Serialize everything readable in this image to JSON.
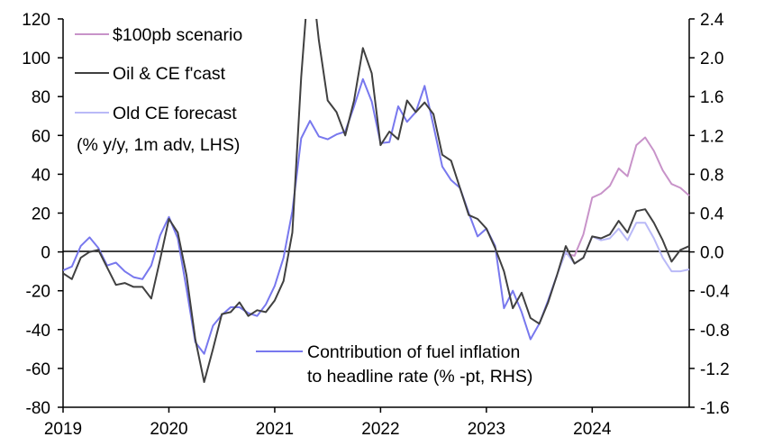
{
  "chart_data": {
    "type": "line",
    "title": "",
    "x_start": "2019-01",
    "frequency": "monthly",
    "xticks": [
      "2019",
      "2020",
      "2021",
      "2022",
      "2023",
      "2024"
    ],
    "y_left": {
      "label": "% y/y, 1m adv, LHS",
      "ylim": [
        -80,
        120
      ],
      "ticks": [
        "120",
        "100",
        "80",
        "60",
        "40",
        "20",
        "0",
        "-20",
        "-40",
        "-60",
        "-80"
      ]
    },
    "y_right": {
      "label": "% -pt, RHS",
      "ylim": [
        -1.6,
        2.4
      ],
      "ticks": [
        "2.4",
        "2.0",
        "1.6",
        "1.2",
        "0.8",
        "0.4",
        "0.0",
        "-0.4",
        "-0.8",
        "-1.2",
        "-1.6"
      ]
    },
    "legend": {
      "pink": "$100pb scenario",
      "black": "Oil & CE f'cast",
      "light": "Old CE forecast",
      "note": "(% y/y, 1m adv, LHS)",
      "blue_line1": "Contribution of fuel inflation",
      "blue_line2": "to headline rate (% -pt, RHS)"
    },
    "series": [
      {
        "name": "Oil & CE f'cast",
        "axis": "left",
        "start": "2019-01",
        "color": "#404040",
        "values": [
          -11,
          -14,
          -3,
          0,
          1,
          -8,
          -17,
          -16,
          -18,
          -18,
          -24,
          -4,
          17,
          10,
          -12,
          -45,
          -67,
          -50,
          -32,
          -31,
          -26,
          -33,
          -30,
          -31,
          -25,
          -15,
          10,
          90,
          150,
          109,
          78,
          72,
          60,
          78,
          105,
          92,
          55,
          62,
          58,
          78,
          72,
          77,
          71,
          50,
          47,
          33,
          19,
          17,
          12,
          2,
          -10,
          -29,
          -21,
          -34,
          -37,
          -26,
          -12,
          3,
          -6,
          -3,
          8,
          7,
          9,
          16,
          10,
          21,
          22,
          15,
          6,
          -5,
          1,
          3
        ]
      },
      {
        "name": "Contribution of fuel inflation to headline rate",
        "axis": "right",
        "start": "2019-01",
        "color": "#7878ee",
        "values": [
          -0.19,
          -0.15,
          0.06,
          0.15,
          0.04,
          -0.14,
          -0.11,
          -0.2,
          -0.26,
          -0.28,
          -0.14,
          0.17,
          0.36,
          0.14,
          -0.38,
          -0.93,
          -1.05,
          -0.76,
          -0.65,
          -0.57,
          -0.57,
          -0.63,
          -0.66,
          -0.54,
          -0.35,
          -0.06,
          0.42,
          1.17,
          1.35,
          1.19,
          1.16,
          1.21,
          1.24,
          1.5,
          1.78,
          1.55,
          1.12,
          1.13,
          1.5,
          1.34,
          1.44,
          1.71,
          1.3,
          0.88,
          0.74,
          0.66,
          0.4,
          0.16,
          0.24,
          0.06,
          -0.58,
          -0.4,
          -0.62,
          -0.9,
          -0.74,
          -0.5,
          -0.24
        ]
      },
      {
        "name": "Old CE forecast",
        "axis": "left",
        "start": "2023-09",
        "color": "#b9b9f7",
        "values": [
          -12,
          0,
          -6,
          -3,
          8,
          6,
          7,
          12,
          6,
          15,
          15,
          7,
          -3,
          -10,
          -10,
          -9
        ]
      },
      {
        "name": "$100pb scenario",
        "axis": "left",
        "start": "2023-10",
        "color": "#c893c9",
        "values": [
          -1,
          -2,
          9,
          28,
          30,
          34,
          43,
          39,
          55,
          59,
          52,
          42,
          35,
          33,
          29
        ]
      }
    ]
  }
}
